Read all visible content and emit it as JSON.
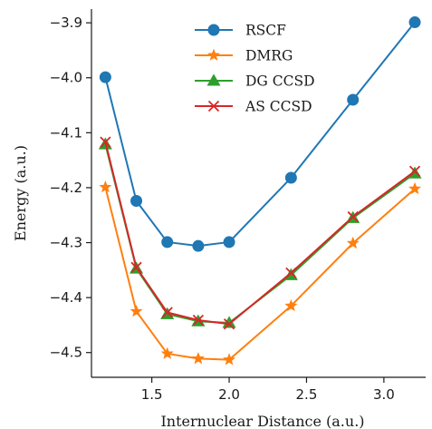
{
  "chart_data": {
    "type": "line",
    "xlabel": "Internuclear Distance (a.u.)",
    "ylabel": "Energy (a.u.)",
    "xlim": [
      1.11,
      3.27
    ],
    "ylim": [
      -4.545,
      -3.875
    ],
    "xticks": [
      1.5,
      2.0,
      2.5,
      3.0
    ],
    "xtick_labels": [
      "1.5",
      "2.0",
      "2.5",
      "3.0"
    ],
    "yticks": [
      -3.9,
      -4.0,
      -4.1,
      -4.2,
      -4.3,
      -4.4,
      -4.5
    ],
    "ytick_labels": [
      "−3.9",
      "−4.0",
      "−4.1",
      "−4.2",
      "−4.3",
      "−4.4",
      "−4.5"
    ],
    "grid": false,
    "legend_position": "top-center",
    "series": [
      {
        "name": "RSCF",
        "color": "#1f77b4",
        "marker": "circle",
        "x": [
          1.2,
          1.4,
          1.6,
          1.8,
          2.0,
          2.4,
          2.8,
          3.2
        ],
        "y": [
          -3.999,
          -4.224,
          -4.299,
          -4.306,
          -4.299,
          -4.182,
          -4.04,
          -3.899
        ]
      },
      {
        "name": "DMRG",
        "color": "#ff7f0e",
        "marker": "star",
        "x": [
          1.2,
          1.4,
          1.6,
          1.8,
          2.0,
          2.4,
          2.8,
          3.2
        ],
        "y": [
          -4.199,
          -4.425,
          -4.502,
          -4.511,
          -4.513,
          -4.415,
          -4.301,
          -4.202
        ]
      },
      {
        "name": "DG CCSD",
        "color": "#2ca02c",
        "marker": "triangle",
        "x": [
          1.2,
          1.4,
          1.6,
          1.8,
          2.0,
          2.4,
          2.8,
          3.2
        ],
        "y": [
          -4.121,
          -4.347,
          -4.43,
          -4.443,
          -4.446,
          -4.359,
          -4.255,
          -4.174
        ]
      },
      {
        "name": "AS CCSD",
        "color": "#d62728",
        "marker": "x",
        "x": [
          1.2,
          1.4,
          1.6,
          1.8,
          2.0,
          2.4,
          2.8,
          3.2
        ],
        "y": [
          -4.117,
          -4.345,
          -4.427,
          -4.441,
          -4.448,
          -4.355,
          -4.253,
          -4.17
        ]
      }
    ]
  }
}
